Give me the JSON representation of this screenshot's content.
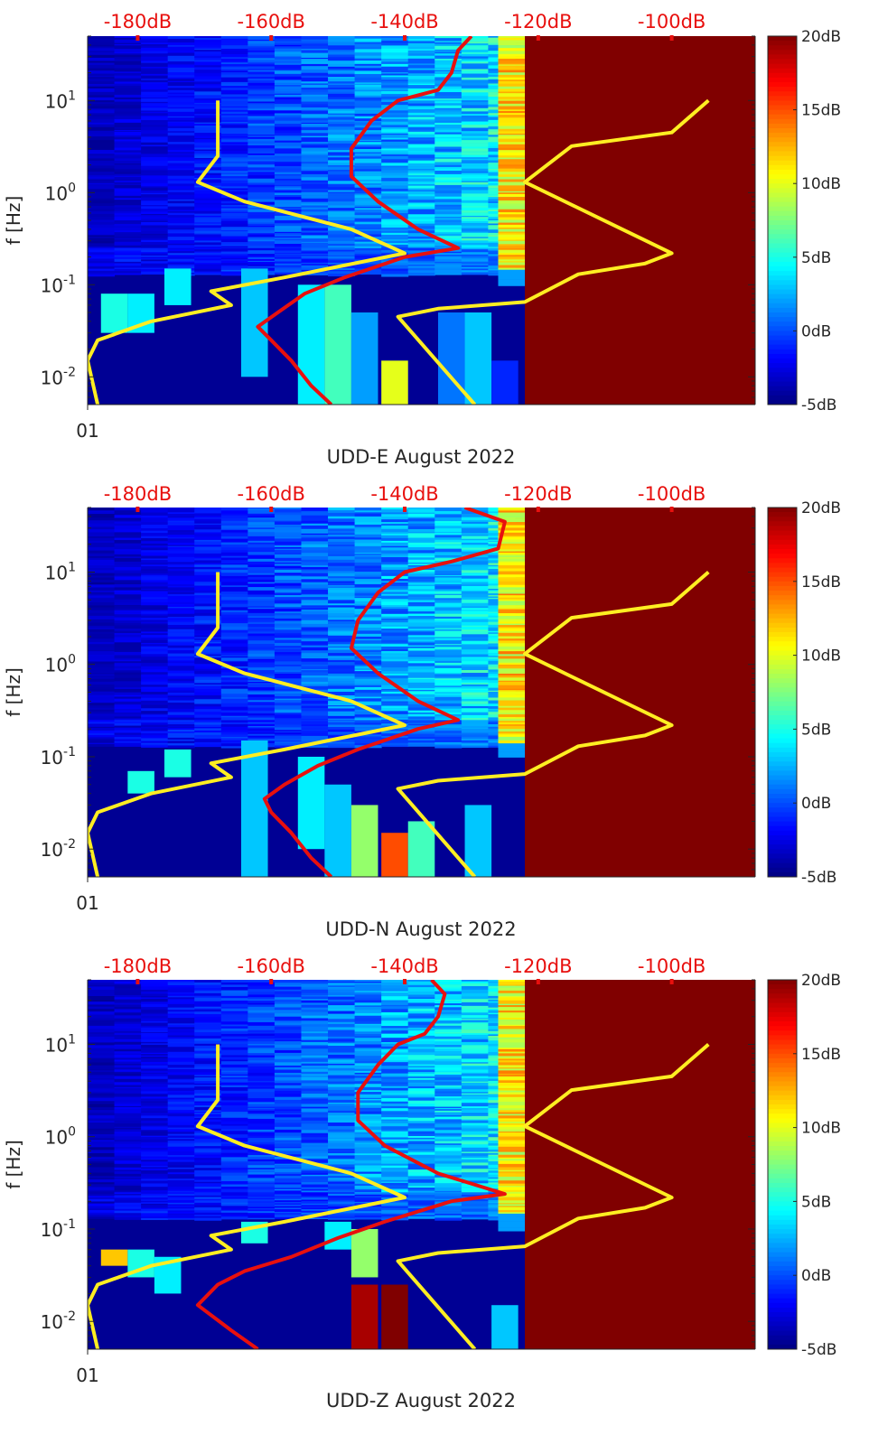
{
  "chart_data": [
    {
      "type": "heatmap",
      "title": "UDD-E August 2022",
      "ylabel": "f [Hz]",
      "xtick_label": "01",
      "yscale": "log",
      "ylim": [
        0.005,
        50
      ],
      "yticks": [
        "10-2",
        "10-1",
        "100",
        "101"
      ],
      "top_axis_ticks": [
        "-180dB",
        "-160dB",
        "-140dB",
        "-120dB",
        "-100dB"
      ],
      "top_axis_range_db": [
        -187.5,
        -87.5
      ],
      "colorbar": {
        "min": -5,
        "max": 20,
        "ticks": [
          "20dB",
          "15dB",
          "10dB",
          "5dB",
          "0dB",
          "-5dB"
        ]
      },
      "saturated_above_db": -122,
      "red_curve_db": [
        [
          0.005,
          -151
        ],
        [
          0.008,
          -154
        ],
        [
          0.015,
          -157
        ],
        [
          0.025,
          -160
        ],
        [
          0.035,
          -162
        ],
        [
          0.05,
          -159
        ],
        [
          0.08,
          -155
        ],
        [
          0.12,
          -149
        ],
        [
          0.2,
          -140
        ],
        [
          0.25,
          -132
        ],
        [
          0.4,
          -138
        ],
        [
          0.8,
          -144
        ],
        [
          1.5,
          -148
        ],
        [
          3,
          -148
        ],
        [
          6,
          -145
        ],
        [
          10,
          -141
        ],
        [
          13,
          -135
        ],
        [
          20,
          -133
        ],
        [
          35,
          -132
        ],
        [
          50,
          -130
        ]
      ],
      "yellow_left_db": [
        [
          0.005,
          -186
        ],
        [
          0.015,
          -187.5
        ],
        [
          0.025,
          -186
        ],
        [
          0.04,
          -178
        ],
        [
          0.06,
          -166
        ],
        [
          0.085,
          -169
        ],
        [
          0.12,
          -158
        ],
        [
          0.22,
          -140
        ],
        [
          0.4,
          -148
        ],
        [
          0.8,
          -164
        ],
        [
          1.3,
          -171
        ],
        [
          2.5,
          -168
        ],
        [
          10,
          -168
        ]
      ],
      "yellow_right_db": [
        [
          0.005,
          -129.5
        ],
        [
          0.045,
          -141
        ],
        [
          0.055,
          -135
        ],
        [
          0.065,
          -122
        ],
        [
          0.13,
          -114
        ],
        [
          0.17,
          -104
        ],
        [
          0.22,
          -100
        ],
        [
          1.3,
          -122
        ],
        [
          3.2,
          -115
        ],
        [
          4.5,
          -100
        ],
        [
          10,
          -94.5
        ]
      ],
      "column_anomalies_db": [
        [
          -183.5,
          0.03,
          0.08,
          5
        ],
        [
          -179.5,
          0.03,
          0.08,
          4
        ],
        [
          -174,
          0.06,
          0.15,
          4
        ],
        [
          -162.5,
          0.01,
          0.15,
          3
        ],
        [
          -154,
          0.005,
          0.1,
          4
        ],
        [
          -150,
          0.005,
          0.1,
          6
        ],
        [
          -146,
          0.005,
          0.05,
          2
        ],
        [
          -141.5,
          0.005,
          0.015,
          10
        ],
        [
          -133,
          0.005,
          0.05,
          1
        ],
        [
          -129,
          0.005,
          0.05,
          3
        ],
        [
          -125,
          0.005,
          0.015,
          -1
        ]
      ]
    },
    {
      "type": "heatmap",
      "title": "UDD-N August 2022",
      "ylabel": "f [Hz]",
      "xtick_label": "01",
      "yscale": "log",
      "ylim": [
        0.005,
        50
      ],
      "yticks": [
        "10-2",
        "10-1",
        "100",
        "101"
      ],
      "top_axis_ticks": [
        "-180dB",
        "-160dB",
        "-140dB",
        "-120dB",
        "-100dB"
      ],
      "top_axis_range_db": [
        -187.5,
        -87.5
      ],
      "colorbar": {
        "min": -5,
        "max": 20,
        "ticks": [
          "20dB",
          "15dB",
          "10dB",
          "5dB",
          "0dB",
          "-5dB"
        ]
      },
      "saturated_above_db": -122,
      "red_curve_db": [
        [
          0.005,
          -151
        ],
        [
          0.008,
          -154
        ],
        [
          0.015,
          -157
        ],
        [
          0.025,
          -160
        ],
        [
          0.035,
          -161
        ],
        [
          0.05,
          -158
        ],
        [
          0.08,
          -153
        ],
        [
          0.12,
          -147
        ],
        [
          0.2,
          -138
        ],
        [
          0.25,
          -132
        ],
        [
          0.4,
          -138
        ],
        [
          0.8,
          -144
        ],
        [
          1.5,
          -148
        ],
        [
          3,
          -147
        ],
        [
          6,
          -144
        ],
        [
          10,
          -140
        ],
        [
          13,
          -133
        ],
        [
          18,
          -126
        ],
        [
          35,
          -125
        ],
        [
          50,
          -131
        ]
      ],
      "yellow_left_db": [
        [
          0.005,
          -186
        ],
        [
          0.015,
          -187.5
        ],
        [
          0.025,
          -186
        ],
        [
          0.04,
          -178
        ],
        [
          0.06,
          -166
        ],
        [
          0.085,
          -169
        ],
        [
          0.12,
          -158
        ],
        [
          0.22,
          -140
        ],
        [
          0.4,
          -148
        ],
        [
          0.8,
          -164
        ],
        [
          1.3,
          -171
        ],
        [
          2.5,
          -168
        ],
        [
          10,
          -168
        ]
      ],
      "yellow_right_db": [
        [
          0.005,
          -129.5
        ],
        [
          0.045,
          -141
        ],
        [
          0.055,
          -135
        ],
        [
          0.065,
          -122
        ],
        [
          0.13,
          -114
        ],
        [
          0.17,
          -104
        ],
        [
          0.22,
          -100
        ],
        [
          1.3,
          -122
        ],
        [
          3.2,
          -115
        ],
        [
          4.5,
          -100
        ],
        [
          10,
          -94.5
        ]
      ],
      "column_anomalies_db": [
        [
          -179.5,
          0.04,
          0.07,
          5
        ],
        [
          -174,
          0.06,
          0.12,
          5
        ],
        [
          -162.5,
          0.005,
          0.15,
          3
        ],
        [
          -154,
          0.01,
          0.1,
          4
        ],
        [
          -150,
          0.005,
          0.05,
          3
        ],
        [
          -146,
          0.005,
          0.03,
          8
        ],
        [
          -141.5,
          0.005,
          0.015,
          15
        ],
        [
          -137.5,
          0.005,
          0.02,
          6
        ],
        [
          -129,
          0.005,
          0.03,
          3
        ]
      ]
    },
    {
      "type": "heatmap",
      "title": "UDD-Z August 2022",
      "ylabel": "f [Hz]",
      "xtick_label": "01",
      "yscale": "log",
      "ylim": [
        0.005,
        50
      ],
      "yticks": [
        "10-2",
        "10-1",
        "100",
        "101"
      ],
      "top_axis_ticks": [
        "-180dB",
        "-160dB",
        "-140dB",
        "-120dB",
        "-100dB"
      ],
      "top_axis_range_db": [
        -187.5,
        -87.5
      ],
      "colorbar": {
        "min": -5,
        "max": 20,
        "ticks": [
          "20dB",
          "15dB",
          "10dB",
          "5dB",
          "0dB",
          "-5dB"
        ]
      },
      "saturated_above_db": -122,
      "red_curve_db": [
        [
          0.005,
          -162
        ],
        [
          0.008,
          -166
        ],
        [
          0.015,
          -171
        ],
        [
          0.025,
          -168
        ],
        [
          0.035,
          -164
        ],
        [
          0.05,
          -157
        ],
        [
          0.08,
          -150
        ],
        [
          0.12,
          -143
        ],
        [
          0.2,
          -133
        ],
        [
          0.24,
          -125
        ],
        [
          0.4,
          -135
        ],
        [
          0.8,
          -143
        ],
        [
          1.5,
          -147
        ],
        [
          3,
          -147
        ],
        [
          6,
          -144
        ],
        [
          10,
          -141
        ],
        [
          13,
          -137
        ],
        [
          20,
          -135
        ],
        [
          35,
          -134
        ],
        [
          50,
          -136
        ]
      ],
      "yellow_left_db": [
        [
          0.005,
          -186
        ],
        [
          0.015,
          -187.5
        ],
        [
          0.025,
          -186
        ],
        [
          0.04,
          -178
        ],
        [
          0.06,
          -166
        ],
        [
          0.085,
          -169
        ],
        [
          0.12,
          -158
        ],
        [
          0.22,
          -140
        ],
        [
          0.4,
          -148
        ],
        [
          0.8,
          -164
        ],
        [
          1.3,
          -171
        ],
        [
          2.5,
          -168
        ],
        [
          10,
          -168
        ]
      ],
      "yellow_right_db": [
        [
          0.005,
          -129.5
        ],
        [
          0.045,
          -141
        ],
        [
          0.055,
          -135
        ],
        [
          0.065,
          -122
        ],
        [
          0.13,
          -114
        ],
        [
          0.17,
          -104
        ],
        [
          0.22,
          -100
        ],
        [
          1.3,
          -122
        ],
        [
          3.2,
          -115
        ],
        [
          4.5,
          -100
        ],
        [
          10,
          -94.5
        ]
      ],
      "column_anomalies_db": [
        [
          -183.5,
          0.04,
          0.06,
          12
        ],
        [
          -179.5,
          0.03,
          0.06,
          5
        ],
        [
          -175.5,
          0.02,
          0.05,
          4
        ],
        [
          -162.5,
          0.07,
          0.12,
          5
        ],
        [
          -150,
          0.06,
          0.12,
          4
        ],
        [
          -146,
          0.03,
          0.1,
          8
        ],
        [
          -146,
          0.005,
          0.025,
          19
        ],
        [
          -141.5,
          0.005,
          0.025,
          20
        ],
        [
          -125,
          0.005,
          0.015,
          3
        ]
      ]
    }
  ]
}
